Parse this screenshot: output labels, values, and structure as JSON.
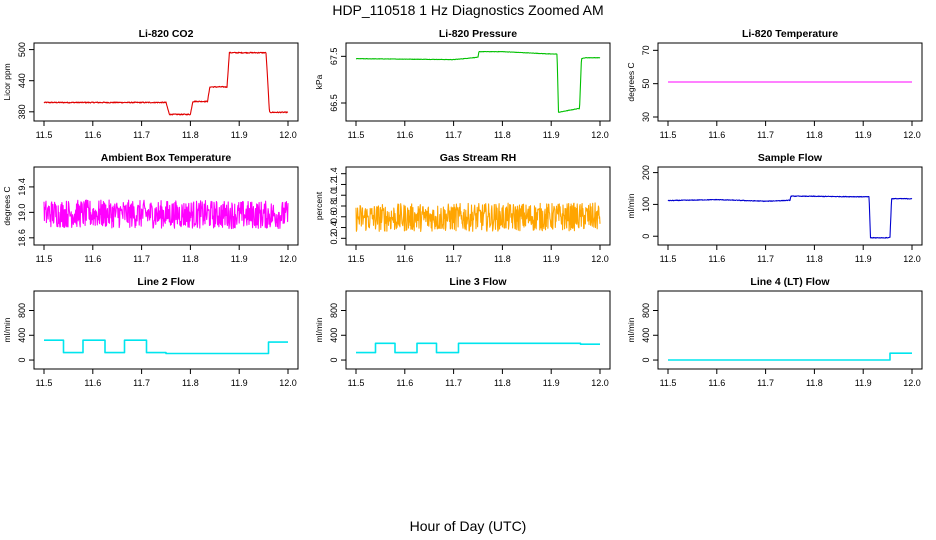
{
  "title": "HDP_110518  1 Hz Diagnostics Zoomed AM",
  "xlabel": "Hour of Day (UTC)",
  "colors": {
    "co2": "#e00000",
    "pressure": "#00c000",
    "temperature": "#ff00ff",
    "box_temperature": "#ff00ff",
    "rh": "#ffa500",
    "sample_flow": "#0000d0",
    "line_flow": "#00e5ee"
  },
  "chart_data": [
    {
      "type": "line",
      "title": "Li-820 CO2",
      "ylabel": "Licor ppm",
      "color": "#e00000",
      "xlim": [
        11.5,
        12.0
      ],
      "ylim": [
        370,
        505
      ],
      "xticks": [
        "11.5",
        "11.6",
        "11.7",
        "11.8",
        "11.9",
        "12.0"
      ],
      "yticks": [
        "380",
        "440",
        "500"
      ],
      "x": [
        11.5,
        11.75,
        11.757,
        11.8,
        11.805,
        11.835,
        11.84,
        11.875,
        11.88,
        11.955,
        11.962,
        12.0
      ],
      "y": [
        398,
        398,
        375,
        375,
        400,
        400,
        428,
        428,
        494,
        494,
        379,
        379
      ],
      "noise": 1.0
    },
    {
      "type": "line",
      "title": "Li-820 Pressure",
      "ylabel": "kPa",
      "color": "#00c000",
      "xlim": [
        11.5,
        12.0
      ],
      "ylim": [
        66.2,
        67.7
      ],
      "xticks": [
        "11.5",
        "11.6",
        "11.7",
        "11.8",
        "11.9",
        "12.0"
      ],
      "yticks": [
        "66.5",
        "67.5"
      ],
      "x": [
        11.5,
        11.6,
        11.7,
        11.75,
        11.752,
        11.8,
        11.9,
        11.912,
        11.915,
        11.93,
        11.955,
        11.958,
        11.962,
        11.97,
        12.0
      ],
      "y": [
        67.45,
        67.44,
        67.43,
        67.48,
        67.6,
        67.6,
        67.55,
        67.55,
        66.3,
        66.33,
        66.38,
        66.38,
        67.45,
        67.47,
        67.47
      ],
      "noise": 0.004
    },
    {
      "type": "line",
      "title": "Li-820 Temperature",
      "ylabel": "degrees C",
      "color": "#ff00ff",
      "xlim": [
        11.5,
        12.0
      ],
      "ylim": [
        30,
        72
      ],
      "xticks": [
        "11.5",
        "11.6",
        "11.7",
        "11.8",
        "11.9",
        "12.0"
      ],
      "yticks": [
        "30",
        "50",
        "70"
      ],
      "x": [
        11.5,
        12.0
      ],
      "y": [
        51,
        51
      ],
      "noise": 0
    },
    {
      "type": "line",
      "title": "Ambient Box Temperature",
      "ylabel": "degrees C",
      "color": "#ff00ff",
      "xlim": [
        11.5,
        12.0
      ],
      "ylim": [
        18.55,
        19.65
      ],
      "xticks": [
        "11.5",
        "11.6",
        "11.7",
        "11.8",
        "11.9",
        "12.0"
      ],
      "yticks": [
        "18.6",
        "19.0",
        "19.4"
      ],
      "x": [
        11.5,
        12.0
      ],
      "y": [
        18.98,
        18.96
      ],
      "noise": 0.22
    },
    {
      "type": "line",
      "title": "Gas Stream RH",
      "ylabel": "percent",
      "color": "#ffa500",
      "xlim": [
        11.5,
        12.0
      ],
      "ylim": [
        0.15,
        1.45
      ],
      "xticks": [
        "11.5",
        "11.6",
        "11.7",
        "11.8",
        "11.9",
        "12.0"
      ],
      "yticks": [
        "0.2",
        "0.4",
        "0.6",
        "0.8",
        "1.0",
        "1.2",
        "1.4"
      ],
      "x": [
        11.5,
        12.0
      ],
      "y": [
        0.58,
        0.6
      ],
      "noise": 0.26
    },
    {
      "type": "line",
      "title": "Sample Flow",
      "ylabel": "ml/min",
      "color": "#0000d0",
      "xlim": [
        11.5,
        12.0
      ],
      "ylim": [
        -15,
        205
      ],
      "xticks": [
        "11.5",
        "11.6",
        "11.7",
        "11.8",
        "11.9",
        "12.0"
      ],
      "yticks": [
        "0",
        "100",
        "200"
      ],
      "x": [
        11.5,
        11.6,
        11.7,
        11.75,
        11.752,
        11.9,
        11.912,
        11.915,
        11.95,
        11.955,
        11.958,
        12.0
      ],
      "y": [
        112,
        115,
        110,
        113,
        126,
        124,
        124,
        -5,
        -5,
        -3,
        118,
        118
      ],
      "noise": 1.0
    },
    {
      "type": "line",
      "title": "Line 2 Flow",
      "ylabel": "ml/min",
      "color": "#00e5ee",
      "xlim": [
        11.5,
        12.0
      ],
      "ylim": [
        -80,
        1050
      ],
      "xticks": [
        "11.5",
        "11.6",
        "11.7",
        "11.8",
        "11.9",
        "12.0"
      ],
      "yticks": [
        "0",
        "400",
        "800"
      ],
      "x": [
        11.5,
        11.54,
        11.54,
        11.58,
        11.58,
        11.625,
        11.625,
        11.665,
        11.665,
        11.71,
        11.71,
        11.75,
        11.75,
        11.96,
        11.96,
        12.0
      ],
      "y": [
        320,
        320,
        120,
        120,
        320,
        320,
        120,
        120,
        320,
        320,
        120,
        120,
        105,
        105,
        290,
        290
      ],
      "noise": 0
    },
    {
      "type": "line",
      "title": "Line 3 Flow",
      "ylabel": "ml/min",
      "color": "#00e5ee",
      "xlim": [
        11.5,
        12.0
      ],
      "ylim": [
        -80,
        1050
      ],
      "xticks": [
        "11.5",
        "11.6",
        "11.7",
        "11.8",
        "11.9",
        "12.0"
      ],
      "yticks": [
        "0",
        "400",
        "800"
      ],
      "x": [
        11.5,
        11.54,
        11.54,
        11.58,
        11.58,
        11.625,
        11.625,
        11.665,
        11.665,
        11.71,
        11.71,
        11.96,
        11.96,
        12.0
      ],
      "y": [
        120,
        120,
        270,
        270,
        120,
        120,
        270,
        270,
        120,
        120,
        270,
        270,
        255,
        255
      ],
      "noise": 0
    },
    {
      "type": "line",
      "title": "Line 4 (LT) Flow",
      "ylabel": "ml/min",
      "color": "#00e5ee",
      "xlim": [
        11.5,
        12.0
      ],
      "ylim": [
        -80,
        1050
      ],
      "xticks": [
        "11.5",
        "11.6",
        "11.7",
        "11.8",
        "11.9",
        "12.0"
      ],
      "yticks": [
        "0",
        "400",
        "800"
      ],
      "x": [
        11.5,
        11.955,
        11.955,
        12.0
      ],
      "y": [
        0,
        0,
        110,
        110
      ],
      "noise": 0
    }
  ]
}
